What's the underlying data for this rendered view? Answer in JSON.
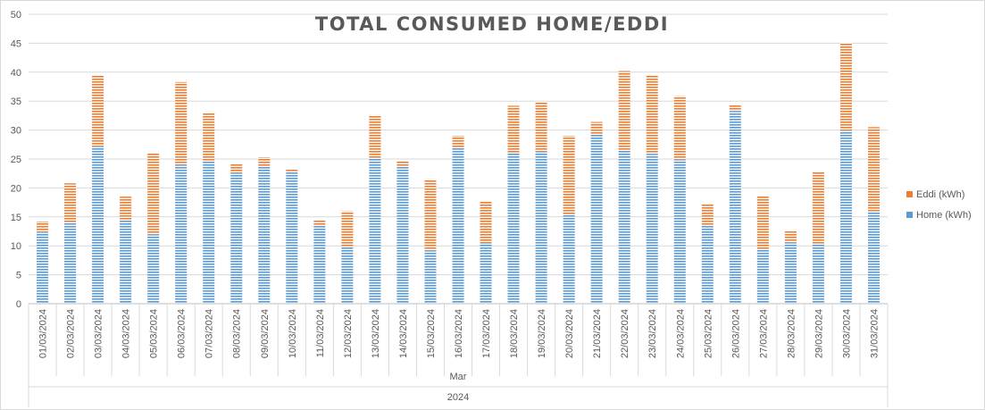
{
  "chart_data": {
    "type": "bar",
    "stacked": true,
    "title": "TOTAL CONSUMED HOME/EDDI",
    "xlabel": "",
    "ylabel": "",
    "ylim": [
      0,
      50
    ],
    "yticks": [
      0,
      5,
      10,
      15,
      20,
      25,
      30,
      35,
      40,
      45,
      50
    ],
    "grid": true,
    "legend_position": "right",
    "categories": [
      "01/03/2024",
      "02/03/2024",
      "03/03/2024",
      "04/03/2024",
      "05/03/2024",
      "06/03/2024",
      "07/03/2024",
      "08/03/2024",
      "09/03/2024",
      "10/03/2024",
      "11/03/2024",
      "12/03/2024",
      "13/03/2024",
      "14/03/2024",
      "15/03/2024",
      "16/03/2024",
      "17/03/2024",
      "18/03/2024",
      "19/03/2024",
      "20/03/2024",
      "21/03/2024",
      "22/03/2024",
      "23/03/2024",
      "24/03/2024",
      "25/03/2024",
      "26/03/2024",
      "27/03/2024",
      "28/03/2024",
      "29/03/2024",
      "30/03/2024",
      "31/03/2024"
    ],
    "group_labels": {
      "month": "Mar",
      "year": "2024"
    },
    "series": [
      {
        "name": "Home (kWh)",
        "color": "#5b9bd5",
        "values": [
          12.4,
          14.0,
          27.2,
          14.5,
          12.0,
          24.0,
          24.6,
          22.6,
          23.8,
          22.7,
          13.6,
          9.9,
          25.1,
          23.8,
          9.2,
          27.0,
          10.5,
          26.1,
          26.3,
          15.3,
          29.3,
          26.5,
          25.9,
          24.9,
          13.6,
          33.3,
          9.3,
          10.6,
          10.4,
          29.9,
          16.0
        ]
      },
      {
        "name": "Eddi (kWh)",
        "color": "#ed7d31",
        "values": [
          1.8,
          6.8,
          12.3,
          4.0,
          14.0,
          14.3,
          8.4,
          1.5,
          1.5,
          0.5,
          0.8,
          6.1,
          7.5,
          0.9,
          12.3,
          2.0,
          7.3,
          8.1,
          8.6,
          13.7,
          2.1,
          13.7,
          13.6,
          11.0,
          3.6,
          1.1,
          9.4,
          2.0,
          12.4,
          15.2,
          14.5
        ]
      }
    ]
  }
}
